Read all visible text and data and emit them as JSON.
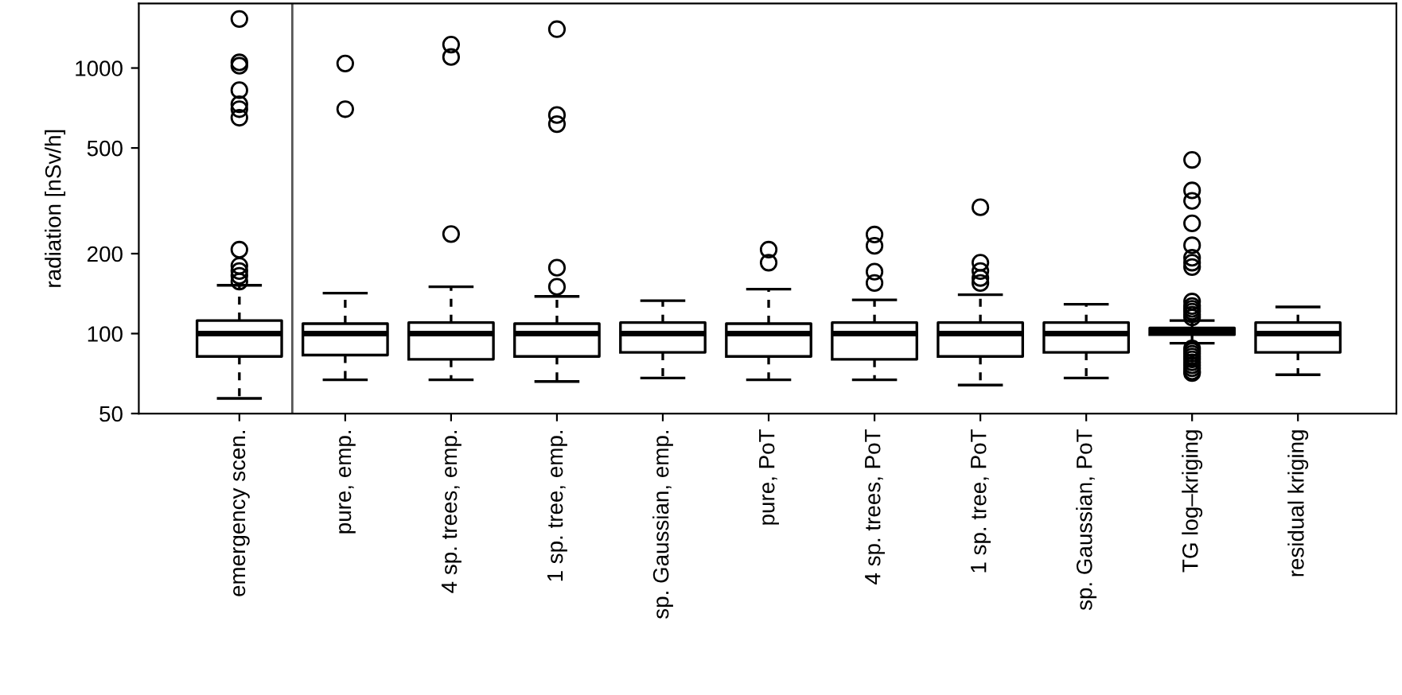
{
  "chart_data": {
    "type": "box",
    "ylabel": "radiation [nSv/h]",
    "log": "y",
    "ylim": [
      50,
      1750
    ],
    "yticks": [
      50,
      100,
      200,
      500,
      1000
    ],
    "grid": false,
    "categories": [
      "emergency scen.",
      "pure, emp.",
      "4 sp. trees, emp.",
      "1 sp. tree, emp.",
      "sp. Gaussian, emp.",
      "pure, PoT",
      "4 sp. trees, PoT",
      "1 sp. tree, PoT",
      "sp. Gaussian, PoT",
      "TG log–kriging",
      "residual kriging"
    ],
    "boxes": [
      {
        "low": 57,
        "q1": 82,
        "median": 100,
        "q3": 112,
        "high": 152,
        "outliers": [
          157,
          165,
          172,
          180,
          207,
          650,
          700,
          730,
          825,
          1020,
          1050,
          1530
        ]
      },
      {
        "low": 67,
        "q1": 83,
        "median": 100,
        "q3": 109,
        "high": 142,
        "outliers": [
          700,
          1040
        ]
      },
      {
        "low": 67,
        "q1": 80,
        "median": 100,
        "q3": 110,
        "high": 150,
        "outliers": [
          237,
          1100,
          1225
        ]
      },
      {
        "low": 66,
        "q1": 82,
        "median": 100,
        "q3": 109,
        "high": 138,
        "outliers": [
          150,
          177,
          615,
          665,
          1400
        ]
      },
      {
        "low": 68,
        "q1": 85,
        "median": 100,
        "q3": 110,
        "high": 133
      },
      {
        "low": 67,
        "q1": 82,
        "median": 100,
        "q3": 109,
        "high": 147,
        "outliers": [
          185,
          207
        ]
      },
      {
        "low": 67,
        "q1": 80,
        "median": 100,
        "q3": 110,
        "high": 134,
        "outliers": [
          155,
          171,
          214,
          236
        ]
      },
      {
        "low": 64,
        "q1": 82,
        "median": 100,
        "q3": 110,
        "high": 140,
        "outliers": [
          155,
          162,
          172,
          185,
          299
        ]
      },
      {
        "low": 68,
        "q1": 85,
        "median": 100,
        "q3": 110,
        "high": 129
      },
      {
        "low": 92,
        "q1": 99,
        "median": 102,
        "q3": 105,
        "high": 112,
        "outliers": [
          71,
          72,
          74,
          76,
          78,
          80,
          82,
          84,
          86,
          88,
          115,
          118,
          121,
          124,
          127,
          132,
          178,
          185,
          193,
          215,
          260,
          316,
          346,
          451
        ]
      },
      {
        "low": 70,
        "q1": 85,
        "median": 100,
        "q3": 110,
        "high": 126
      }
    ]
  }
}
